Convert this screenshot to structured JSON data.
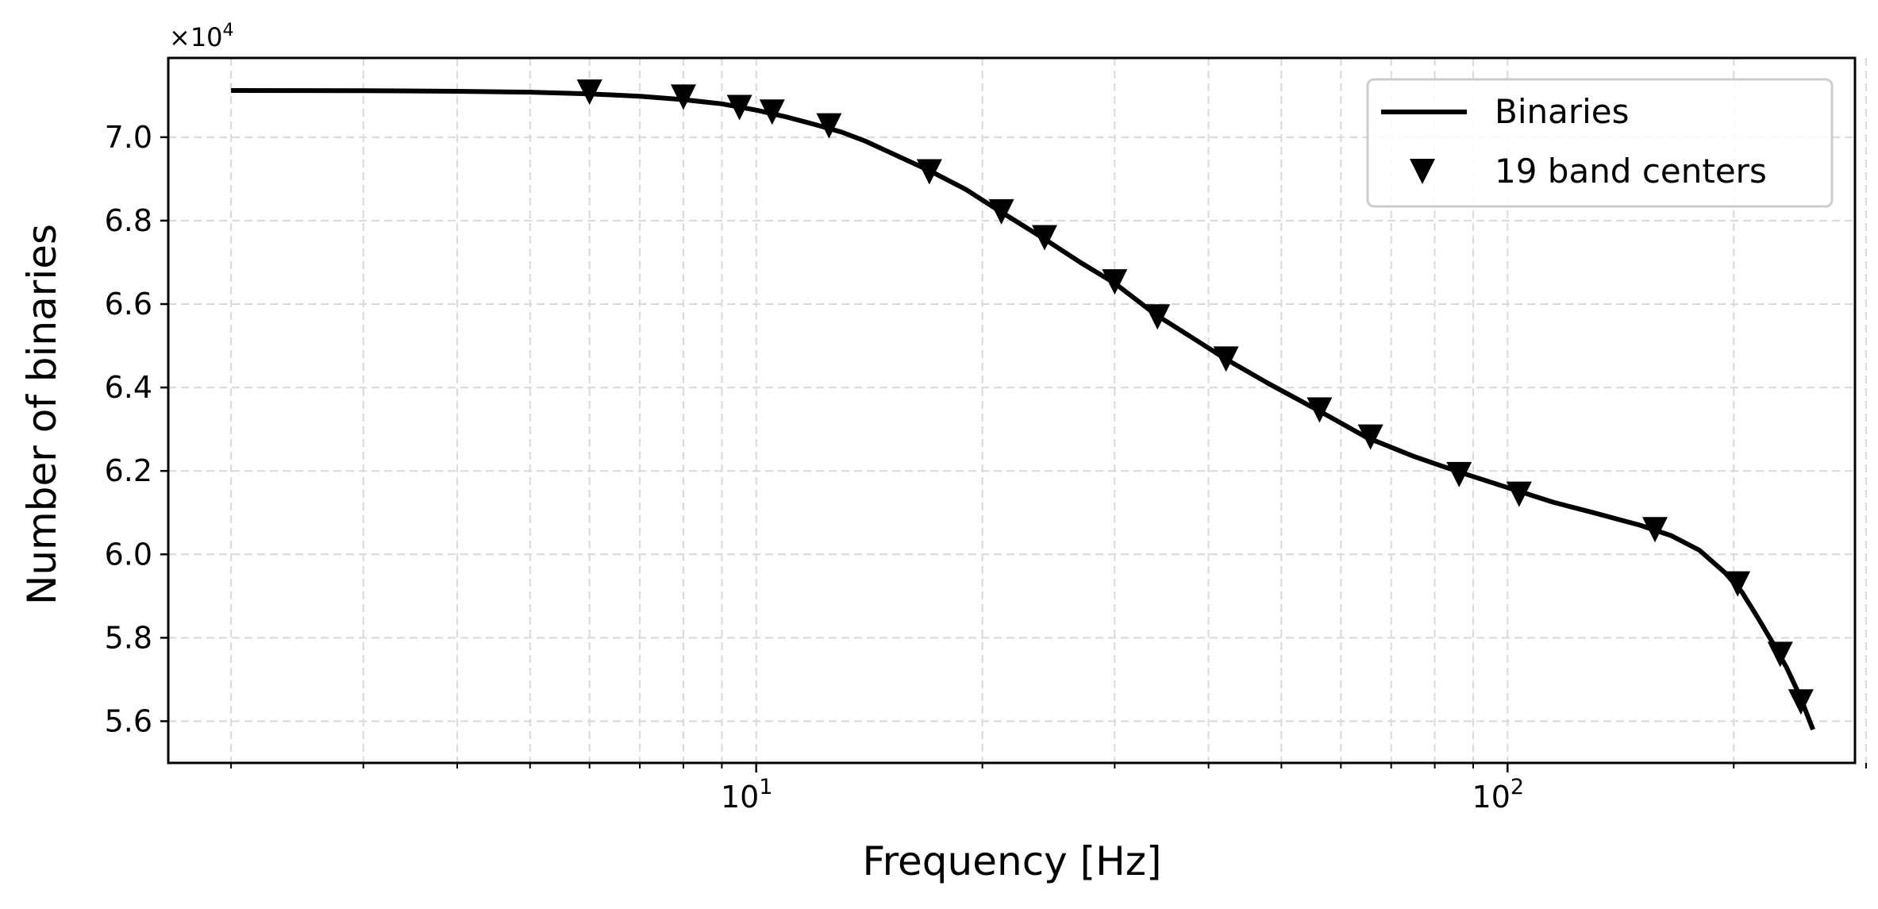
{
  "chart_data": {
    "type": "line",
    "xscale": "log",
    "xlabel": "Frequency [Hz]",
    "ylabel": "Number of binaries",
    "xlim": [
      1.65,
      290
    ],
    "ylim": [
      55000,
      71900
    ],
    "y_offset_label": "×10",
    "y_offset_exponent": "4",
    "y_ticks": [
      56000,
      58000,
      60000,
      62000,
      64000,
      66000,
      68000,
      70000
    ],
    "y_tick_labels": [
      "5.6",
      "5.8",
      "6.0",
      "6.2",
      "6.4",
      "6.6",
      "6.8",
      "7.0"
    ],
    "x_major_ticks": [
      10,
      100
    ],
    "x_tick_labels": [
      {
        "base": "10",
        "exp": "1"
      },
      {
        "base": "10",
        "exp": "2"
      }
    ],
    "x_minor_ticks": [
      2,
      3,
      4,
      5,
      6,
      7,
      8,
      9,
      20,
      30,
      40,
      50,
      60,
      70,
      80,
      90,
      200,
      300
    ],
    "grid": true,
    "legend_position": "top-right",
    "series": [
      {
        "name": "Binaries",
        "style": "line",
        "color": "#000000",
        "points": [
          [
            2,
            71120
          ],
          [
            3,
            71115
          ],
          [
            4,
            71100
          ],
          [
            5,
            71080
          ],
          [
            6,
            71040
          ],
          [
            7,
            70980
          ],
          [
            8,
            70900
          ],
          [
            9,
            70800
          ],
          [
            10,
            70650
          ],
          [
            11,
            70480
          ],
          [
            12,
            70300
          ],
          [
            13,
            70120
          ],
          [
            14,
            69900
          ],
          [
            15,
            69650
          ],
          [
            17,
            69200
          ],
          [
            19,
            68750
          ],
          [
            21,
            68250
          ],
          [
            24,
            67600
          ],
          [
            27,
            67000
          ],
          [
            30,
            66500
          ],
          [
            34,
            65750
          ],
          [
            38,
            65200
          ],
          [
            42,
            64700
          ],
          [
            48,
            64100
          ],
          [
            56,
            63450
          ],
          [
            65,
            62800
          ],
          [
            75,
            62350
          ],
          [
            87,
            61950
          ],
          [
            100,
            61600
          ],
          [
            115,
            61250
          ],
          [
            130,
            61000
          ],
          [
            150,
            60700
          ],
          [
            165,
            60450
          ],
          [
            180,
            60100
          ],
          [
            195,
            59550
          ],
          [
            205,
            59100
          ],
          [
            215,
            58500
          ],
          [
            225,
            57900
          ],
          [
            235,
            57300
          ],
          [
            245,
            56600
          ],
          [
            255,
            55800
          ]
        ]
      },
      {
        "name": "19 band centers",
        "style": "marker",
        "marker": "triangle-down",
        "color": "#000000",
        "points": [
          [
            6,
            71080
          ],
          [
            8,
            70960
          ],
          [
            9.5,
            70710
          ],
          [
            10.5,
            70600
          ],
          [
            12.5,
            70270
          ],
          [
            17,
            69170
          ],
          [
            21.2,
            68210
          ],
          [
            24.2,
            67590
          ],
          [
            30,
            66530
          ],
          [
            34.2,
            65690
          ],
          [
            42.2,
            64680
          ],
          [
            56.2,
            63460
          ],
          [
            65.7,
            62810
          ],
          [
            86.2,
            61910
          ],
          [
            103.6,
            61440
          ],
          [
            157.1,
            60590
          ],
          [
            202.4,
            59290
          ],
          [
            230.6,
            57600
          ],
          [
            245.7,
            56460
          ]
        ]
      }
    ]
  }
}
